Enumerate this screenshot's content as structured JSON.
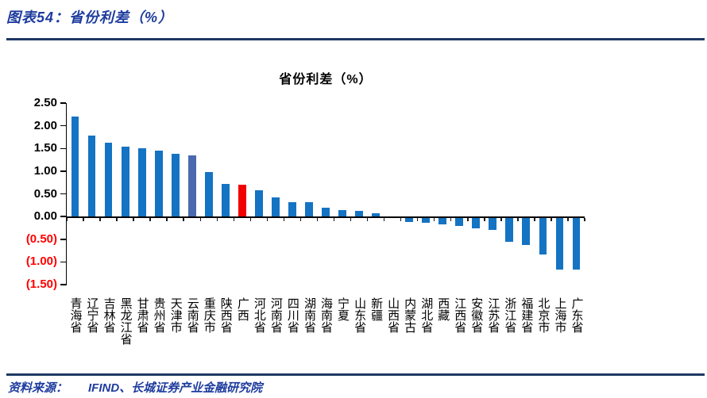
{
  "header": {
    "caption": "图表54：省份利差（%）"
  },
  "footer": {
    "source_label": "资料来源：",
    "source_text": "IFIND、长城证券产业金融研究院"
  },
  "colors": {
    "caption_blue": "#1e3c9e",
    "rule_navy": "#1f3864",
    "bar_default": "#1473c3",
    "bar_highlight_slate": "#4b69af",
    "bar_highlight_red": "#f20000",
    "negative_label_red": "#ff0000",
    "axis_black": "#000000"
  },
  "chart_data": {
    "type": "bar",
    "title": "省份利差（%）",
    "xlabel": "",
    "ylabel": "",
    "ylim": [
      -1.5,
      2.5
    ],
    "grid": false,
    "legend": false,
    "yticks": [
      {
        "label": "2.50",
        "value": 2.5
      },
      {
        "label": "2.00",
        "value": 2.0
      },
      {
        "label": "1.50",
        "value": 1.5
      },
      {
        "label": "1.00",
        "value": 1.0
      },
      {
        "label": "0.50",
        "value": 0.5
      },
      {
        "label": "0.00",
        "value": 0.0
      },
      {
        "label": "(0.50)",
        "value": -0.5
      },
      {
        "label": "(1.00)",
        "value": -1.0
      },
      {
        "label": "(1.50)",
        "value": -1.5
      }
    ],
    "categories": [
      "青海省",
      "辽宁省",
      "吉林省",
      "黑龙江省",
      "甘肃省",
      "贵州省",
      "天津市",
      "云南省",
      "重庆市",
      "陕西省",
      "广西",
      "河北省",
      "河南省",
      "四川省",
      "湖南省",
      "海南省",
      "宁夏",
      "山东省",
      "新疆",
      "山西省",
      "内蒙古",
      "湖北省",
      "西藏",
      "江西省",
      "安徽省",
      "江苏省",
      "浙江省",
      "福建省",
      "北京市",
      "上海市",
      "广东省"
    ],
    "values": [
      2.2,
      1.78,
      1.63,
      1.54,
      1.5,
      1.46,
      1.38,
      1.35,
      0.98,
      0.71,
      0.7,
      0.58,
      0.42,
      0.32,
      0.31,
      0.19,
      0.15,
      0.12,
      0.08,
      0.0,
      -0.1,
      -0.11,
      -0.15,
      -0.18,
      -0.23,
      -0.27,
      -0.53,
      -0.6,
      -0.8,
      -1.14,
      -1.14
    ],
    "bar_colors": [
      "#1473c3",
      "#1473c3",
      "#1473c3",
      "#1473c3",
      "#1473c3",
      "#1473c3",
      "#1473c3",
      "#4b69af",
      "#1473c3",
      "#1473c3",
      "#f20000",
      "#1473c3",
      "#1473c3",
      "#1473c3",
      "#1473c3",
      "#1473c3",
      "#1473c3",
      "#1473c3",
      "#1473c3",
      "#1473c3",
      "#1473c3",
      "#1473c3",
      "#1473c3",
      "#1473c3",
      "#1473c3",
      "#1473c3",
      "#1473c3",
      "#1473c3",
      "#1473c3",
      "#1473c3",
      "#1473c3"
    ]
  }
}
